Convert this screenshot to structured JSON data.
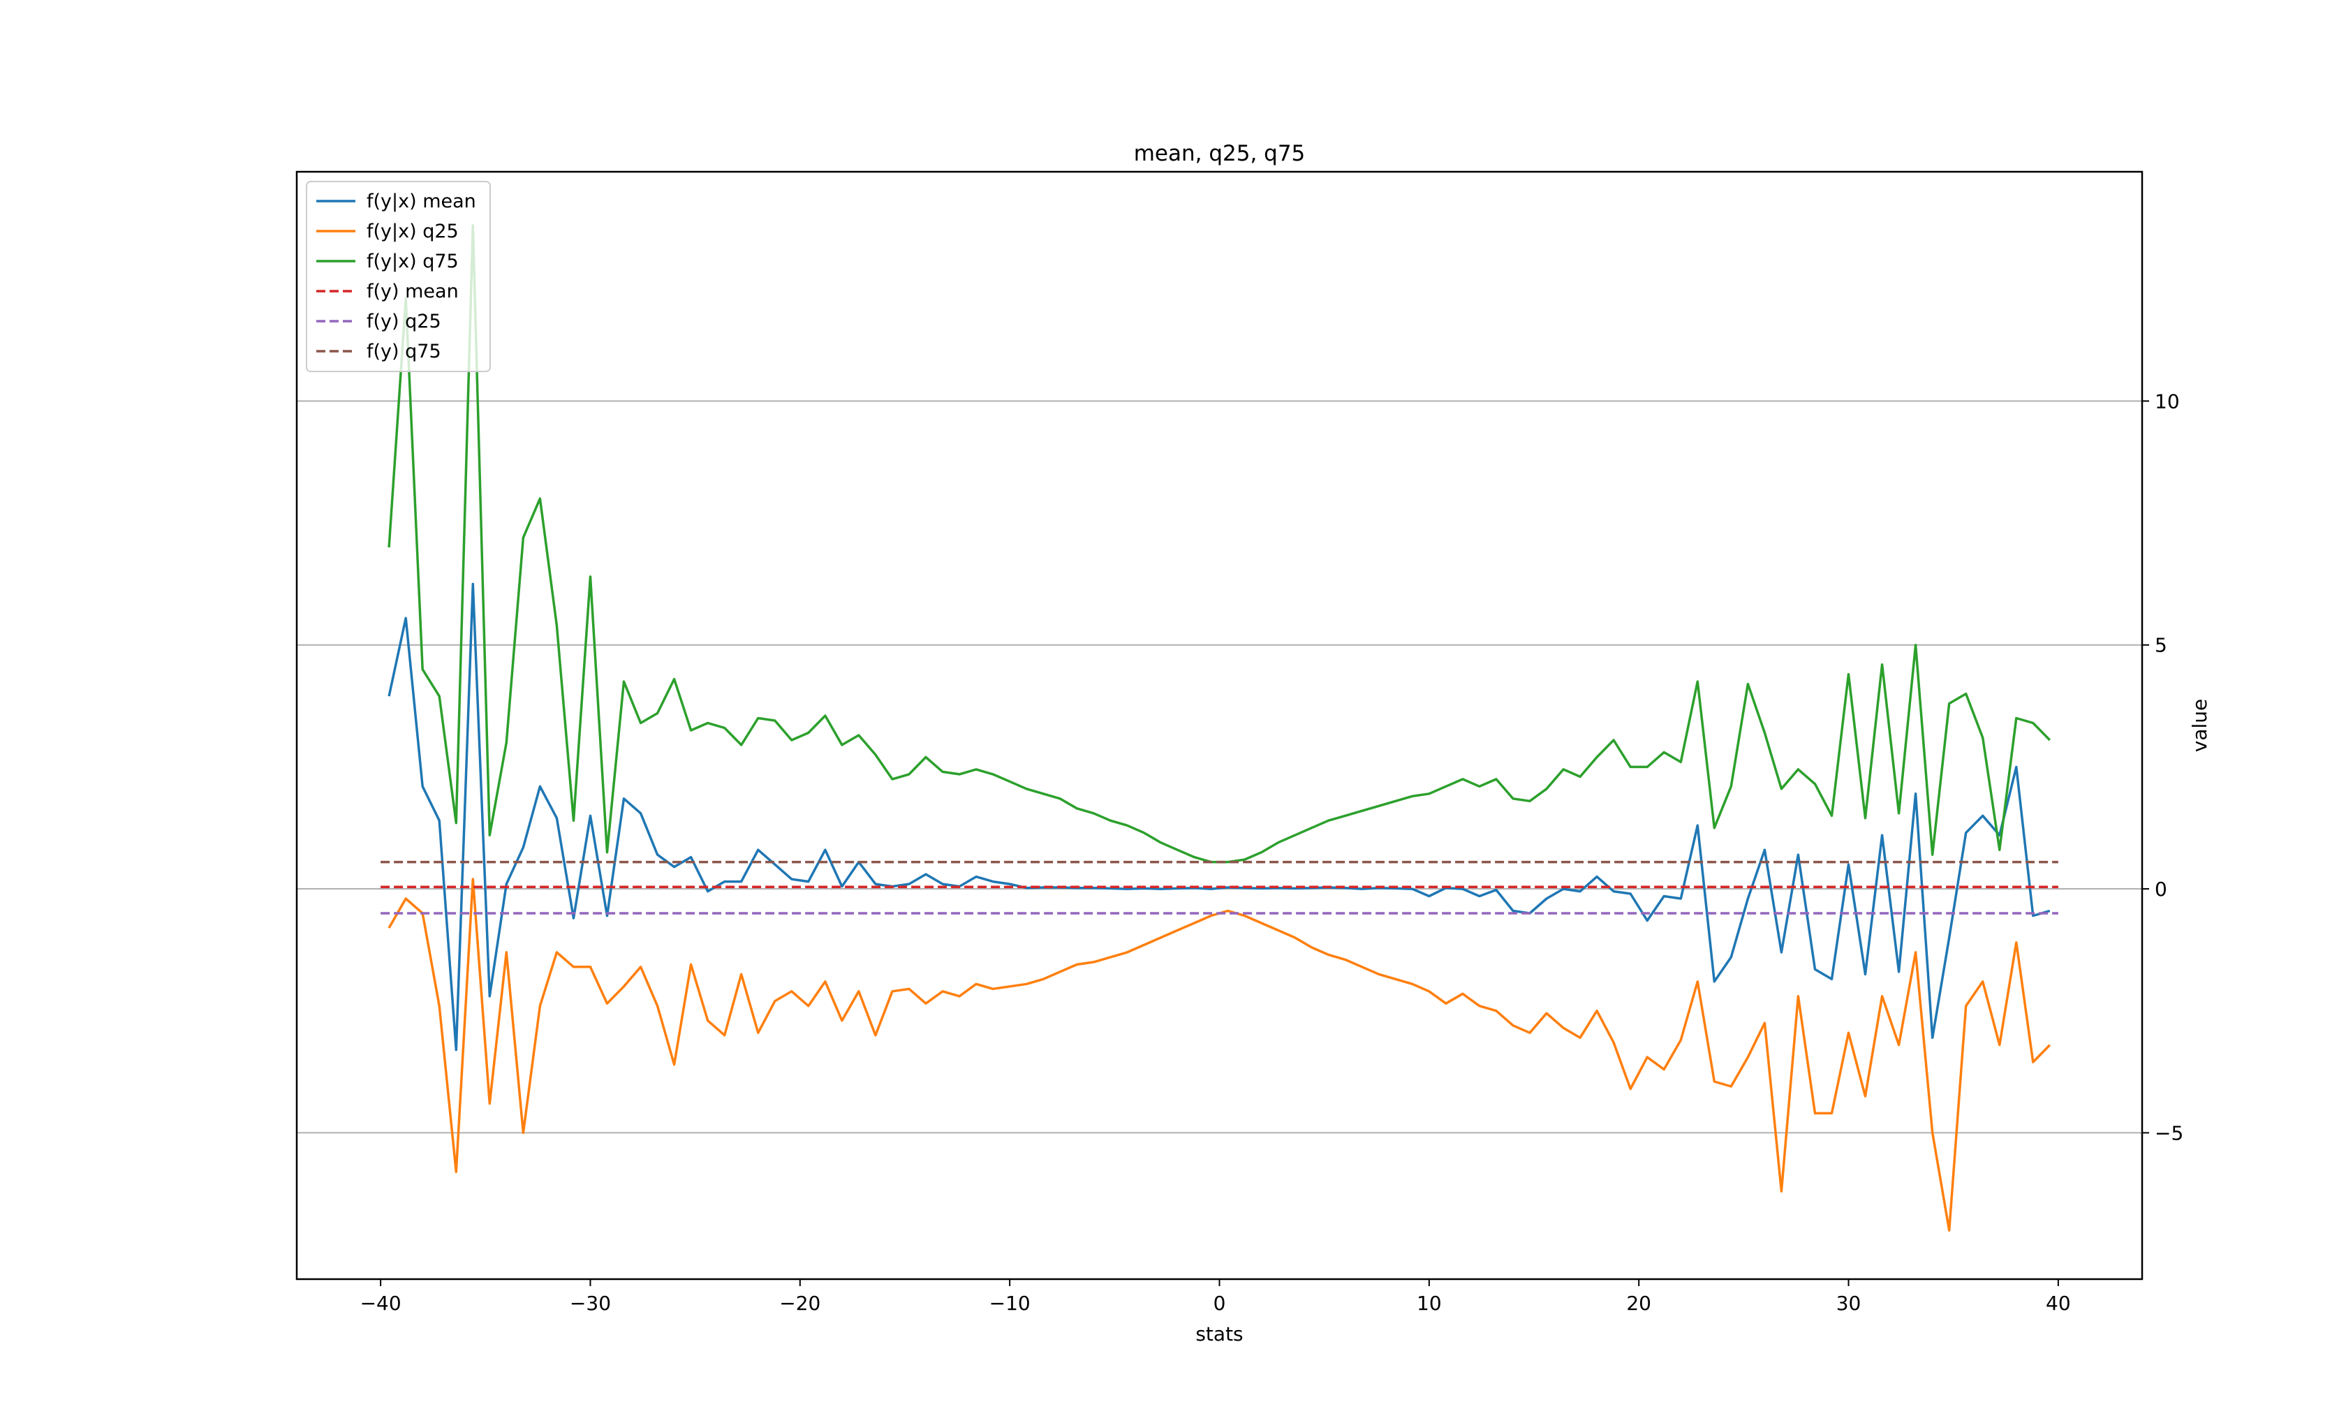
{
  "chart_data": {
    "type": "line",
    "title": "mean, q25, q75",
    "xlabel": "stats",
    "ylabel": "value",
    "xlim": [
      -44,
      44
    ],
    "ylim": [
      -8.0,
      14.7
    ],
    "y_axis_side": "right",
    "grid": "horizontal",
    "legend_loc": "upper left",
    "x_ticks": [
      -40,
      -30,
      -20,
      -10,
      0,
      10,
      20,
      30,
      40
    ],
    "x_tick_labels": [
      "−40",
      "−30",
      "−20",
      "−10",
      "0",
      "10",
      "20",
      "30",
      "40"
    ],
    "y_ticks": [
      -5,
      0,
      5,
      10
    ],
    "y_tick_labels": [
      "−5",
      "0",
      "5",
      "10"
    ],
    "series": [
      {
        "name": "f(y|x) mean",
        "color": "#1f77b4",
        "style": "solid",
        "points": [
          [
            -39.6,
            3.95
          ],
          [
            -38.8,
            5.55
          ],
          [
            -38.0,
            2.1
          ],
          [
            -37.2,
            1.4
          ],
          [
            -36.4,
            -3.3
          ],
          [
            -35.6,
            6.25
          ],
          [
            -34.8,
            -2.2
          ],
          [
            -34.0,
            0.1
          ],
          [
            -33.2,
            0.85
          ],
          [
            -32.4,
            2.1
          ],
          [
            -31.6,
            1.45
          ],
          [
            -30.8,
            -0.6
          ],
          [
            -30.0,
            1.5
          ],
          [
            -29.2,
            -0.55
          ],
          [
            -28.4,
            1.85
          ],
          [
            -27.6,
            1.55
          ],
          [
            -26.8,
            0.7
          ],
          [
            -26.0,
            0.45
          ],
          [
            -25.2,
            0.65
          ],
          [
            -24.4,
            -0.05
          ],
          [
            -23.6,
            0.15
          ],
          [
            -22.8,
            0.15
          ],
          [
            -22.0,
            0.8
          ],
          [
            -21.2,
            0.5
          ],
          [
            -20.4,
            0.2
          ],
          [
            -19.6,
            0.15
          ],
          [
            -18.8,
            0.8
          ],
          [
            -18.0,
            0.05
          ],
          [
            -17.2,
            0.55
          ],
          [
            -16.4,
            0.1
          ],
          [
            -15.6,
            0.05
          ],
          [
            -14.8,
            0.1
          ],
          [
            -14.0,
            0.3
          ],
          [
            -13.2,
            0.1
          ],
          [
            -12.4,
            0.05
          ],
          [
            -11.6,
            0.25
          ],
          [
            -10.8,
            0.15
          ],
          [
            -10.0,
            0.1
          ],
          [
            -9.2,
            0.02
          ],
          [
            -8.4,
            0.03
          ],
          [
            -7.6,
            0.03
          ],
          [
            -6.8,
            0.02
          ],
          [
            -6.0,
            0.02
          ],
          [
            -5.2,
            0.01
          ],
          [
            -4.4,
            0.0
          ],
          [
            -3.6,
            0.01
          ],
          [
            -2.8,
            0.0
          ],
          [
            -2.0,
            0.01
          ],
          [
            -1.2,
            0.02
          ],
          [
            -0.4,
            0.0
          ],
          [
            0.4,
            0.03
          ],
          [
            1.2,
            0.02
          ],
          [
            2.0,
            0.01
          ],
          [
            2.8,
            0.02
          ],
          [
            3.6,
            0.01
          ],
          [
            4.4,
            0.02
          ],
          [
            5.2,
            0.03
          ],
          [
            6.0,
            0.02
          ],
          [
            6.8,
            0.0
          ],
          [
            7.6,
            0.02
          ],
          [
            8.4,
            0.01
          ],
          [
            9.2,
            0.0
          ],
          [
            10.0,
            -0.15
          ],
          [
            10.8,
            0.02
          ],
          [
            11.6,
            0.0
          ],
          [
            12.4,
            -0.15
          ],
          [
            13.2,
            -0.02
          ],
          [
            14.0,
            -0.45
          ],
          [
            14.8,
            -0.5
          ],
          [
            15.6,
            -0.2
          ],
          [
            16.4,
            0.0
          ],
          [
            17.2,
            -0.05
          ],
          [
            18.0,
            0.25
          ],
          [
            18.8,
            -0.05
          ],
          [
            19.6,
            -0.1
          ],
          [
            20.4,
            -0.65
          ],
          [
            21.2,
            -0.15
          ],
          [
            22.0,
            -0.2
          ],
          [
            22.8,
            1.3
          ],
          [
            23.6,
            -1.9
          ],
          [
            24.4,
            -1.4
          ],
          [
            25.2,
            -0.2
          ],
          [
            26.0,
            0.8
          ],
          [
            26.8,
            -1.3
          ],
          [
            27.6,
            0.7
          ],
          [
            28.4,
            -1.65
          ],
          [
            29.2,
            -1.85
          ],
          [
            30.0,
            0.5
          ],
          [
            30.8,
            -1.75
          ],
          [
            31.6,
            1.1
          ],
          [
            32.4,
            -1.7
          ],
          [
            33.2,
            1.95
          ],
          [
            34.0,
            -3.05
          ],
          [
            34.8,
            -1.0
          ],
          [
            35.6,
            1.15
          ],
          [
            36.4,
            1.5
          ],
          [
            37.2,
            1.1
          ],
          [
            38.0,
            2.5
          ],
          [
            38.8,
            -0.55
          ],
          [
            39.6,
            -0.45
          ]
        ]
      },
      {
        "name": "f(y|x) q25",
        "color": "#ff7f0e",
        "style": "solid",
        "points": [
          [
            -39.6,
            -0.8
          ],
          [
            -38.8,
            -0.2
          ],
          [
            -38.0,
            -0.5
          ],
          [
            -37.2,
            -2.4
          ],
          [
            -36.4,
            -5.8
          ],
          [
            -35.6,
            0.2
          ],
          [
            -34.8,
            -4.4
          ],
          [
            -34.0,
            -1.3
          ],
          [
            -33.2,
            -5.0
          ],
          [
            -32.4,
            -2.4
          ],
          [
            -31.6,
            -1.3
          ],
          [
            -30.8,
            -1.6
          ],
          [
            -30.0,
            -1.6
          ],
          [
            -29.2,
            -2.35
          ],
          [
            -28.4,
            -2.0
          ],
          [
            -27.6,
            -1.6
          ],
          [
            -26.8,
            -2.4
          ],
          [
            -26.0,
            -3.6
          ],
          [
            -25.2,
            -1.55
          ],
          [
            -24.4,
            -2.7
          ],
          [
            -23.6,
            -3.0
          ],
          [
            -22.8,
            -1.75
          ],
          [
            -22.0,
            -2.95
          ],
          [
            -21.2,
            -2.3
          ],
          [
            -20.4,
            -2.1
          ],
          [
            -19.6,
            -2.4
          ],
          [
            -18.8,
            -1.9
          ],
          [
            -18.0,
            -2.7
          ],
          [
            -17.2,
            -2.1
          ],
          [
            -16.4,
            -3.0
          ],
          [
            -15.6,
            -2.1
          ],
          [
            -14.8,
            -2.05
          ],
          [
            -14.0,
            -2.35
          ],
          [
            -13.2,
            -2.1
          ],
          [
            -12.4,
            -2.2
          ],
          [
            -11.6,
            -1.95
          ],
          [
            -10.8,
            -2.05
          ],
          [
            -10.0,
            -2.0
          ],
          [
            -9.2,
            -1.95
          ],
          [
            -8.4,
            -1.85
          ],
          [
            -7.6,
            -1.7
          ],
          [
            -6.8,
            -1.55
          ],
          [
            -6.0,
            -1.5
          ],
          [
            -5.2,
            -1.4
          ],
          [
            -4.4,
            -1.3
          ],
          [
            -3.6,
            -1.15
          ],
          [
            -2.8,
            -1.0
          ],
          [
            -2.0,
            -0.85
          ],
          [
            -1.2,
            -0.7
          ],
          [
            -0.4,
            -0.55
          ],
          [
            0.4,
            -0.45
          ],
          [
            1.2,
            -0.55
          ],
          [
            2.0,
            -0.7
          ],
          [
            2.8,
            -0.85
          ],
          [
            3.6,
            -1.0
          ],
          [
            4.4,
            -1.2
          ],
          [
            5.2,
            -1.35
          ],
          [
            6.0,
            -1.45
          ],
          [
            6.8,
            -1.6
          ],
          [
            7.6,
            -1.75
          ],
          [
            8.4,
            -1.85
          ],
          [
            9.2,
            -1.95
          ],
          [
            10.0,
            -2.1
          ],
          [
            10.8,
            -2.35
          ],
          [
            11.6,
            -2.15
          ],
          [
            12.4,
            -2.4
          ],
          [
            13.2,
            -2.5
          ],
          [
            14.0,
            -2.8
          ],
          [
            14.8,
            -2.95
          ],
          [
            15.6,
            -2.55
          ],
          [
            16.4,
            -2.85
          ],
          [
            17.2,
            -3.05
          ],
          [
            18.0,
            -2.5
          ],
          [
            18.8,
            -3.15
          ],
          [
            19.6,
            -4.1
          ],
          [
            20.4,
            -3.45
          ],
          [
            21.2,
            -3.7
          ],
          [
            22.0,
            -3.1
          ],
          [
            22.8,
            -1.9
          ],
          [
            23.6,
            -3.95
          ],
          [
            24.4,
            -4.05
          ],
          [
            25.2,
            -3.45
          ],
          [
            26.0,
            -2.75
          ],
          [
            26.8,
            -6.2
          ],
          [
            27.6,
            -2.2
          ],
          [
            28.4,
            -4.6
          ],
          [
            29.2,
            -4.6
          ],
          [
            30.0,
            -2.95
          ],
          [
            30.8,
            -4.25
          ],
          [
            31.6,
            -2.2
          ],
          [
            32.4,
            -3.2
          ],
          [
            33.2,
            -1.3
          ],
          [
            34.0,
            -5.0
          ],
          [
            34.8,
            -7.0
          ],
          [
            35.6,
            -2.4
          ],
          [
            36.4,
            -1.9
          ],
          [
            37.2,
            -3.2
          ],
          [
            38.0,
            -1.1
          ],
          [
            38.8,
            -3.55
          ],
          [
            39.6,
            -3.2
          ]
        ]
      },
      {
        "name": "f(y|x) q75",
        "color": "#2ca02c",
        "style": "solid",
        "points": [
          [
            -39.6,
            7.0
          ],
          [
            -38.8,
            12.1
          ],
          [
            -38.0,
            4.5
          ],
          [
            -37.2,
            3.95
          ],
          [
            -36.4,
            1.35
          ],
          [
            -35.6,
            13.6
          ],
          [
            -34.8,
            1.1
          ],
          [
            -34.0,
            3.0
          ],
          [
            -33.2,
            7.2
          ],
          [
            -32.4,
            8.0
          ],
          [
            -31.6,
            5.4
          ],
          [
            -30.8,
            1.4
          ],
          [
            -30.0,
            6.4
          ],
          [
            -29.2,
            0.75
          ],
          [
            -28.4,
            4.25
          ],
          [
            -27.6,
            3.4
          ],
          [
            -26.8,
            3.6
          ],
          [
            -26.0,
            4.3
          ],
          [
            -25.2,
            3.25
          ],
          [
            -24.4,
            3.4
          ],
          [
            -23.6,
            3.3
          ],
          [
            -22.8,
            2.95
          ],
          [
            -22.0,
            3.5
          ],
          [
            -21.2,
            3.45
          ],
          [
            -20.4,
            3.05
          ],
          [
            -19.6,
            3.2
          ],
          [
            -18.8,
            3.55
          ],
          [
            -18.0,
            2.95
          ],
          [
            -17.2,
            3.15
          ],
          [
            -16.4,
            2.75
          ],
          [
            -15.6,
            2.25
          ],
          [
            -14.8,
            2.35
          ],
          [
            -14.0,
            2.7
          ],
          [
            -13.2,
            2.4
          ],
          [
            -12.4,
            2.35
          ],
          [
            -11.6,
            2.45
          ],
          [
            -10.8,
            2.35
          ],
          [
            -10.0,
            2.2
          ],
          [
            -9.2,
            2.05
          ],
          [
            -8.4,
            1.95
          ],
          [
            -7.6,
            1.85
          ],
          [
            -6.8,
            1.65
          ],
          [
            -6.0,
            1.55
          ],
          [
            -5.2,
            1.4
          ],
          [
            -4.4,
            1.3
          ],
          [
            -3.6,
            1.15
          ],
          [
            -2.8,
            0.95
          ],
          [
            -2.0,
            0.8
          ],
          [
            -1.2,
            0.65
          ],
          [
            -0.4,
            0.55
          ],
          [
            0.4,
            0.55
          ],
          [
            1.2,
            0.6
          ],
          [
            2.0,
            0.75
          ],
          [
            2.8,
            0.95
          ],
          [
            3.6,
            1.1
          ],
          [
            4.4,
            1.25
          ],
          [
            5.2,
            1.4
          ],
          [
            6.0,
            1.5
          ],
          [
            6.8,
            1.6
          ],
          [
            7.6,
            1.7
          ],
          [
            8.4,
            1.8
          ],
          [
            9.2,
            1.9
          ],
          [
            10.0,
            1.95
          ],
          [
            10.8,
            2.1
          ],
          [
            11.6,
            2.25
          ],
          [
            12.4,
            2.1
          ],
          [
            13.2,
            2.25
          ],
          [
            14.0,
            1.85
          ],
          [
            14.8,
            1.8
          ],
          [
            15.6,
            2.05
          ],
          [
            16.4,
            2.45
          ],
          [
            17.2,
            2.3
          ],
          [
            18.0,
            2.7
          ],
          [
            18.8,
            3.05
          ],
          [
            19.6,
            2.5
          ],
          [
            20.4,
            2.5
          ],
          [
            21.2,
            2.8
          ],
          [
            22.0,
            2.6
          ],
          [
            22.8,
            4.25
          ],
          [
            23.6,
            1.25
          ],
          [
            24.4,
            2.1
          ],
          [
            25.2,
            4.2
          ],
          [
            26.0,
            3.2
          ],
          [
            26.8,
            2.05
          ],
          [
            27.6,
            2.45
          ],
          [
            28.4,
            2.15
          ],
          [
            29.2,
            1.5
          ],
          [
            30.0,
            4.4
          ],
          [
            30.8,
            1.45
          ],
          [
            31.6,
            4.6
          ],
          [
            32.4,
            1.55
          ],
          [
            33.2,
            5.0
          ],
          [
            34.0,
            0.7
          ],
          [
            34.8,
            3.8
          ],
          [
            35.6,
            4.0
          ],
          [
            36.4,
            3.1
          ],
          [
            37.2,
            0.8
          ],
          [
            38.0,
            3.5
          ],
          [
            38.8,
            3.4
          ],
          [
            39.6,
            3.05
          ]
        ]
      },
      {
        "name": "f(y) mean",
        "color": "#d62728",
        "style": "dashed",
        "points": [
          [
            -40,
            0.04
          ],
          [
            40,
            0.04
          ]
        ]
      },
      {
        "name": "f(y) q25",
        "color": "#9467bd",
        "style": "dashed",
        "points": [
          [
            -40,
            -0.5
          ],
          [
            40,
            -0.5
          ]
        ]
      },
      {
        "name": "f(y) q75",
        "color": "#8c564b",
        "style": "dashed",
        "points": [
          [
            -40,
            0.55
          ],
          [
            40,
            0.55
          ]
        ]
      }
    ]
  }
}
